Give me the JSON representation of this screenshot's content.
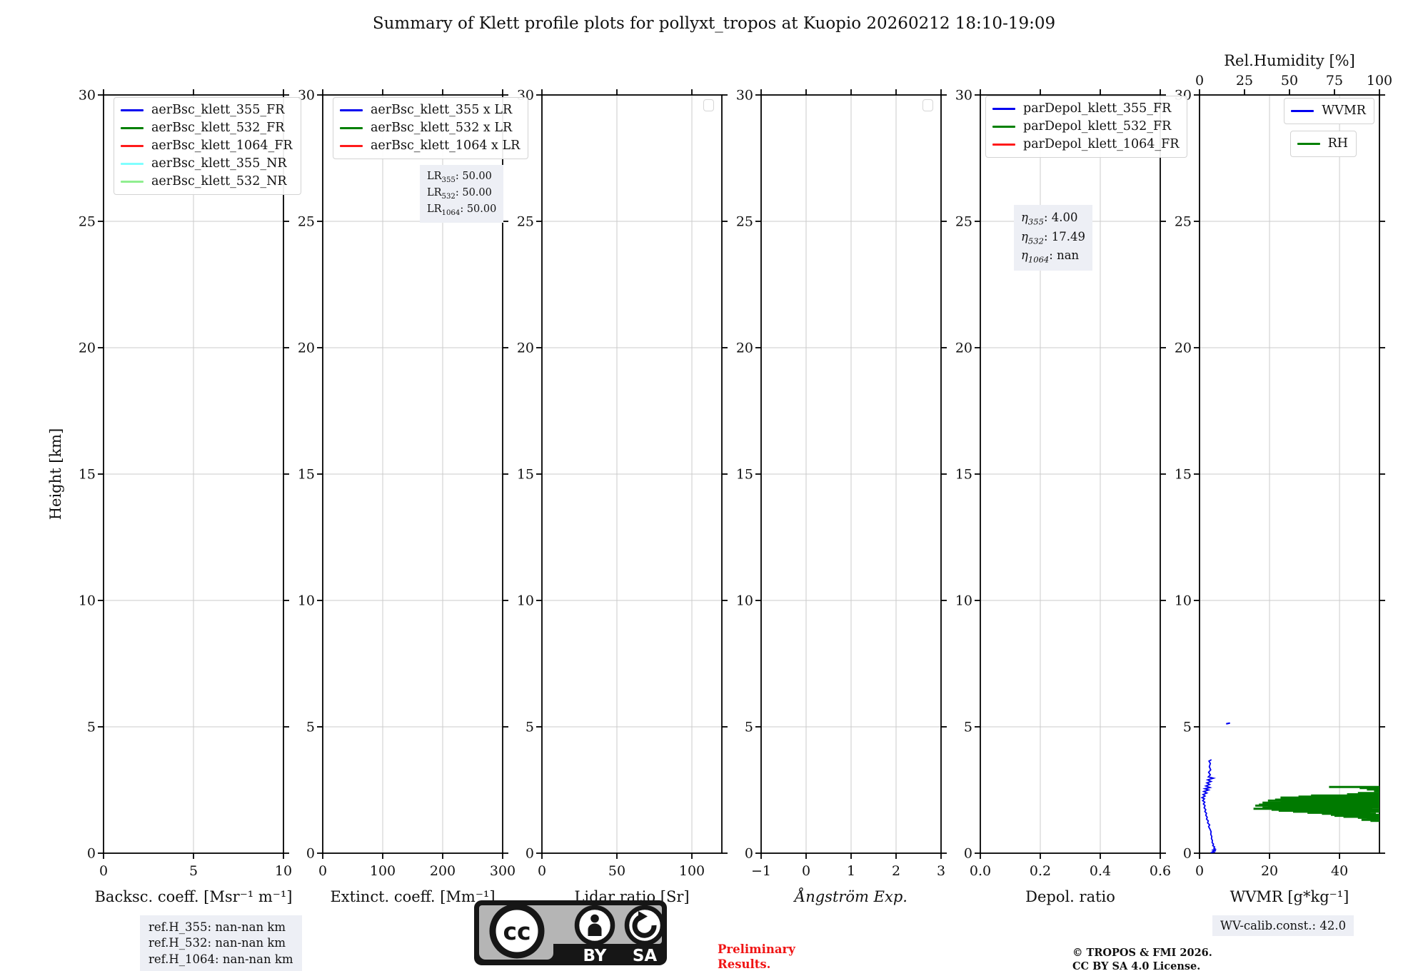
{
  "title": "Summary of Klett profile plots for pollyxt_tropos at Kuopio 20260212 18:10-19:09",
  "y_axis": {
    "label": "Height [km]",
    "ticks": [
      0,
      5,
      10,
      15,
      20,
      25,
      30
    ],
    "range": [
      0,
      30
    ]
  },
  "chart_data": {
    "type": "line",
    "title": "Summary of Klett profile plots for pollyxt_tropos at Kuopio 20260212 18:10-19:09",
    "ylabel": "Height [km]",
    "ylim": [
      0,
      30
    ],
    "grid": true,
    "panels": [
      {
        "id": "backsc",
        "xlabel": "Backsc. coeff. [Msr⁻¹ m⁻¹]",
        "xlim": [
          0,
          10
        ],
        "xticks": [
          {
            "v": 0,
            "l": "0"
          },
          {
            "v": 5,
            "l": "5"
          },
          {
            "v": 10,
            "l": "10"
          }
        ],
        "legend": [
          {
            "label": "aerBsc_klett_355_FR",
            "color": "#0000f0"
          },
          {
            "label": "aerBsc_klett_532_FR",
            "color": "#008000"
          },
          {
            "label": "aerBsc_klett_1064_FR",
            "color": "#ff1a1a"
          },
          {
            "label": "aerBsc_klett_355_NR",
            "color": "#80ffff"
          },
          {
            "label": "aerBsc_klett_532_NR",
            "color": "#90ee90"
          }
        ],
        "series": []
      },
      {
        "id": "extinct",
        "xlabel": "Extinct. coeff. [Mm⁻¹]",
        "xlim": [
          0,
          300
        ],
        "xticks": [
          {
            "v": 0,
            "l": "0"
          },
          {
            "v": 100,
            "l": "100"
          },
          {
            "v": 200,
            "l": "200"
          },
          {
            "v": 300,
            "l": "300"
          }
        ],
        "legend": [
          {
            "label": "aerBsc_klett_355 x LR",
            "color": "#0000f0"
          },
          {
            "label": "aerBsc_klett_532 x LR",
            "color": "#008000"
          },
          {
            "label": "aerBsc_klett_1064 x LR",
            "color": "#ff1a1a"
          }
        ],
        "annotation": {
          "lines": [
            {
              "base": "LR",
              "sub": "355",
              "value": "50.00"
            },
            {
              "base": "LR",
              "sub": "532",
              "value": "50.00"
            },
            {
              "base": "LR",
              "sub": "1064",
              "value": "50.00"
            }
          ]
        },
        "series": []
      },
      {
        "id": "lidar-ratio",
        "xlabel": "Lidar ratio [Sr]",
        "xlim": [
          0,
          120
        ],
        "xticks": [
          {
            "v": 0,
            "l": "0"
          },
          {
            "v": 50,
            "l": "50"
          },
          {
            "v": 100,
            "l": "100"
          }
        ],
        "empty_legend": true,
        "series": []
      },
      {
        "id": "angstrom",
        "xlabel": "Ångström Exp.",
        "italic": true,
        "xlim": [
          -1,
          3
        ],
        "xticks": [
          {
            "v": -1,
            "l": "−1"
          },
          {
            "v": 0,
            "l": "0"
          },
          {
            "v": 1,
            "l": "1"
          },
          {
            "v": 2,
            "l": "2"
          },
          {
            "v": 3,
            "l": "3"
          }
        ],
        "empty_legend": true,
        "series": []
      },
      {
        "id": "depol",
        "xlabel": "Depol. ratio",
        "xlim": [
          0,
          0.6
        ],
        "xticks": [
          {
            "v": 0,
            "l": "0.0"
          },
          {
            "v": 0.2,
            "l": "0.2"
          },
          {
            "v": 0.4,
            "l": "0.4"
          },
          {
            "v": 0.6,
            "l": "0.6"
          }
        ],
        "legend": [
          {
            "label": "parDepol_klett_355_FR",
            "color": "#0000f0"
          },
          {
            "label": "parDepol_klett_532_FR",
            "color": "#008000"
          },
          {
            "label": "parDepol_klett_1064_FR",
            "color": "#ff1a1a"
          }
        ],
        "annotation": {
          "lines": [
            {
              "base": "η",
              "sub": "355",
              "value": "4.00",
              "italic": true
            },
            {
              "base": "η",
              "sub": "532",
              "value": "17.49",
              "italic": true
            },
            {
              "base": "η",
              "sub": "1064",
              "value": "nan",
              "italic": true
            }
          ]
        },
        "series": []
      },
      {
        "id": "wvmr",
        "xlabel": "WVMR [g*kg⁻¹]",
        "xlim": [
          0,
          51.4
        ],
        "xticks": [
          {
            "v": 0,
            "l": "0"
          },
          {
            "v": 20,
            "l": "20"
          },
          {
            "v": 40,
            "l": "40"
          }
        ],
        "top_axis": {
          "label": "Rel.Humidity [%]",
          "lim": [
            0,
            100
          ],
          "ticks": [
            {
              "v": 0,
              "l": "0"
            },
            {
              "v": 25,
              "l": "25"
            },
            {
              "v": 50,
              "l": "50"
            },
            {
              "v": 75,
              "l": "75"
            },
            {
              "v": 100,
              "l": "100"
            }
          ]
        },
        "legend_boxes": [
          {
            "label": "WVMR",
            "color": "#0000f0"
          },
          {
            "label": "RH",
            "color": "#008000"
          }
        ],
        "series": [
          {
            "name": "WVMR",
            "axis": "bottom",
            "color": "#0000f0",
            "width": 1.8,
            "units": "g/kg",
            "points": [
              [
                0.02,
                3.2
              ],
              [
                0.05,
                4.4
              ],
              [
                0.07,
                3.6
              ],
              [
                0.1,
                4.7
              ],
              [
                0.13,
                3.9
              ],
              [
                0.16,
                4.5
              ],
              [
                0.2,
                4.1
              ],
              [
                0.25,
                4.3
              ],
              [
                0.3,
                3.8
              ],
              [
                0.36,
                4.0
              ],
              [
                0.42,
                3.6
              ],
              [
                0.5,
                3.7
              ],
              [
                0.58,
                3.4
              ],
              [
                0.66,
                3.5
              ],
              [
                0.75,
                3.2
              ],
              [
                0.85,
                3.3
              ],
              [
                0.95,
                3.0
              ],
              [
                1.05,
                2.6
              ],
              [
                1.12,
                2.9
              ],
              [
                1.2,
                2.3
              ],
              [
                1.28,
                2.5
              ],
              [
                1.35,
                2.0
              ],
              [
                1.42,
                2.2
              ],
              [
                1.5,
                1.8
              ],
              [
                1.58,
                2.0
              ],
              [
                1.65,
                1.5
              ],
              [
                1.72,
                1.8
              ],
              [
                1.8,
                1.3
              ],
              [
                1.88,
                1.6
              ],
              [
                1.95,
                1.1
              ],
              [
                2.02,
                1.5
              ],
              [
                2.08,
                0.9
              ],
              [
                2.15,
                1.4
              ],
              [
                2.2,
                0.7
              ],
              [
                2.26,
                1.6
              ],
              [
                2.32,
                1.0
              ],
              [
                2.38,
                2.1
              ],
              [
                2.44,
                1.2
              ],
              [
                2.5,
                2.6
              ],
              [
                2.55,
                1.5
              ],
              [
                2.6,
                3.0
              ],
              [
                2.66,
                1.8
              ],
              [
                2.72,
                2.9
              ],
              [
                2.78,
                2.1
              ],
              [
                2.84,
                3.3
              ],
              [
                2.9,
                2.3
              ],
              [
                2.97,
                4.0
              ],
              [
                3.02,
                2.5
              ],
              [
                3.1,
                3.1
              ],
              [
                3.2,
                2.6
              ],
              [
                3.3,
                3.2
              ],
              [
                3.42,
                2.8
              ],
              [
                3.55,
                3.1
              ],
              [
                3.64,
                2.7
              ],
              [
                3.7,
                3.4
              ]
            ]
          },
          {
            "name": "WVMR-upper-segment",
            "axis": "bottom",
            "color": "#0000f0",
            "width": 2.2,
            "points": [
              [
                5.12,
                7.6
              ],
              [
                5.15,
                8.7
              ]
            ]
          },
          {
            "name": "RH",
            "axis": "top",
            "color": "#007a00",
            "width": 3,
            "units": "%",
            "segments": [
              [
                2.62,
                72,
                100
              ],
              [
                2.58,
                89,
                100
              ],
              [
                2.52,
                93,
                100
              ],
              [
                2.46,
                97,
                100
              ],
              [
                2.38,
                88,
                100
              ],
              [
                2.33,
                82,
                100
              ],
              [
                2.28,
                62,
                100
              ],
              [
                2.24,
                55,
                100
              ],
              [
                2.2,
                45,
                100
              ],
              [
                2.16,
                48,
                100
              ],
              [
                2.12,
                42,
                100
              ],
              [
                2.08,
                38,
                100
              ],
              [
                2.04,
                45,
                100
              ],
              [
                2.0,
                35,
                100
              ],
              [
                1.96,
                40,
                100
              ],
              [
                1.92,
                33,
                100
              ],
              [
                1.88,
                31,
                100
              ],
              [
                1.84,
                38,
                100
              ],
              [
                1.8,
                35,
                100
              ],
              [
                1.76,
                30,
                96
              ],
              [
                1.72,
                40,
                100
              ],
              [
                1.68,
                44,
                97
              ],
              [
                1.64,
                52,
                100
              ],
              [
                1.6,
                60,
                95
              ],
              [
                1.56,
                68,
                98
              ],
              [
                1.52,
                73,
                100
              ],
              [
                1.48,
                75,
                99
              ],
              [
                1.44,
                80,
                100
              ],
              [
                1.4,
                88,
                100
              ],
              [
                1.36,
                93,
                100
              ],
              [
                1.32,
                90,
                98
              ],
              [
                1.28,
                95,
                100
              ]
            ]
          }
        ]
      }
    ]
  },
  "footer": {
    "ref_lines": [
      "ref.H_355: nan-nan km",
      "ref.H_532: nan-nan km",
      "ref.H_1064: nan-nan km"
    ],
    "preliminary": [
      "Preliminary",
      "Results."
    ],
    "copyright": [
      "© TROPOS & FMI 2026.",
      "CC BY SA 4.0 License."
    ],
    "wv_calib": "WV-calib.const.: 42.0",
    "cc_badge": {
      "cc": "cc",
      "by": "BY",
      "sa": "SA"
    }
  },
  "colors": {
    "blue": "#0000f0",
    "green": "#008000",
    "red": "#ff1a1a",
    "cyan": "#80ffff",
    "lightgreen": "#90ee90",
    "rh_green": "#007a00",
    "grid": "#cbcbcb",
    "annotation_bg": "#edeff5",
    "preliminary_red": "#f01414"
  }
}
